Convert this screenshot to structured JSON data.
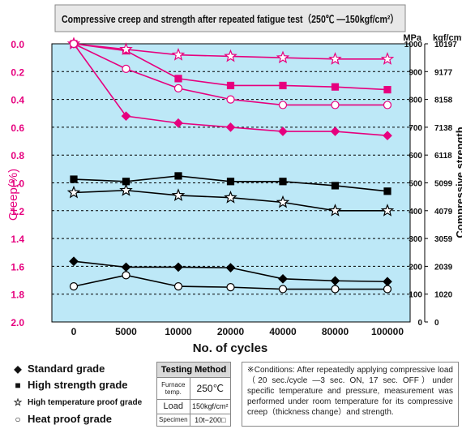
{
  "chart_data": {
    "type": "line",
    "title": "Compressive creep and strength after repeated fatigue test（250℃ —150kgf/cm²）",
    "xlabel": "No. of cycles",
    "ylabel_left": "Creep(%)",
    "ylabel_right": "Compressive strength",
    "right_axis_unit_mpa": "MPa",
    "right_axis_unit_kgf": "kgf/cm²",
    "categories": [
      "0",
      "5000",
      "10000",
      "20000",
      "40000",
      "80000",
      "100000"
    ],
    "creep_ticks": [
      "0.0",
      "0.2",
      "0.4",
      "0.6",
      "0.8",
      "1.0",
      "1.2",
      "1.4",
      "1.6",
      "1.8",
      "2.0"
    ],
    "creep_range": [
      0,
      2.0
    ],
    "strength_range_mpa": [
      0,
      1000
    ],
    "mpa_ticks": [
      "0",
      "100",
      "200",
      "300",
      "400",
      "500",
      "600",
      "700",
      "800",
      "900",
      "1000"
    ],
    "kgf_ticks": [
      "0",
      "1020",
      "2039",
      "3059",
      "4079",
      "5099",
      "6118",
      "7138",
      "8158",
      "9177",
      "10197"
    ],
    "grid": "horizontal-dashed",
    "series": [
      {
        "name": "Standard grade",
        "metric": "creep",
        "marker": "diamond",
        "filled": true,
        "color": "#e6007e",
        "values": [
          0.0,
          0.52,
          0.57,
          0.6,
          0.63,
          0.63,
          0.66
        ]
      },
      {
        "name": "High strength grade",
        "metric": "creep",
        "marker": "square",
        "filled": true,
        "color": "#e6007e",
        "values": [
          0.0,
          0.05,
          0.25,
          0.3,
          0.3,
          0.31,
          0.33
        ]
      },
      {
        "name": "High temperature proof grade",
        "metric": "creep",
        "marker": "star",
        "filled": false,
        "color": "#e6007e",
        "values": [
          0.0,
          0.04,
          0.08,
          0.09,
          0.1,
          0.11,
          0.11
        ]
      },
      {
        "name": "Heat proof grade",
        "metric": "creep",
        "marker": "circle",
        "filled": false,
        "color": "#e6007e",
        "values": [
          0.0,
          0.18,
          0.32,
          0.4,
          0.44,
          0.44,
          0.44
        ]
      },
      {
        "name": "High strength grade",
        "metric": "strength",
        "marker": "square",
        "filled": true,
        "color": "#000000",
        "values": [
          513,
          505,
          525,
          505,
          505,
          490,
          470
        ]
      },
      {
        "name": "High temperature proof grade",
        "metric": "strength",
        "marker": "star",
        "filled": false,
        "color": "#000000",
        "values": [
          465,
          473,
          455,
          447,
          430,
          400,
          400
        ]
      },
      {
        "name": "Standard grade",
        "metric": "strength",
        "marker": "diamond",
        "filled": true,
        "color": "#000000",
        "values": [
          218,
          197,
          197,
          195,
          155,
          148,
          145
        ]
      },
      {
        "name": "Heat proof grade",
        "metric": "strength",
        "marker": "circle",
        "filled": false,
        "color": "#000000",
        "values": [
          128,
          168,
          128,
          125,
          118,
          118,
          118
        ]
      }
    ]
  },
  "legend": {
    "standard": "Standard grade",
    "high_strength": "High strength grade",
    "high_temp": "High temperature proof grade",
    "heat_proof": "Heat proof grade"
  },
  "testing": {
    "title": "Testing Method",
    "furnace_label": "Furnace temp.",
    "furnace_value": "250℃",
    "load_label": "Load",
    "load_value": "150kgf/cm²",
    "specimen_label": "Specimen",
    "specimen_value": "10t−200□"
  },
  "conditions_text": "※Conditions: After repeatedly applying compressive load（20 sec./cycle —3 sec. ON, 17 sec. OFF）under specific temperature and pressure, measurement was performed under room temperature for its compressive creep（thickness change）and strength."
}
